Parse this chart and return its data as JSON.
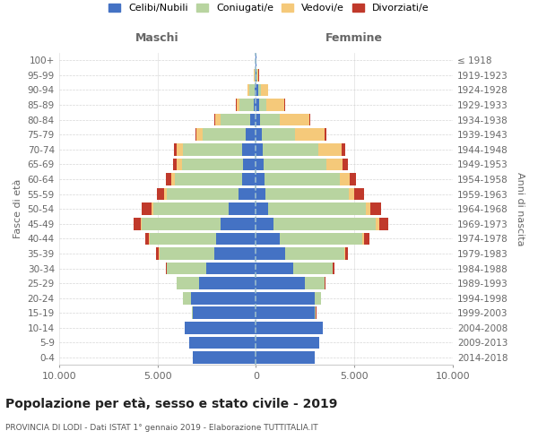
{
  "age_groups": [
    "0-4",
    "5-9",
    "10-14",
    "15-19",
    "20-24",
    "25-29",
    "30-34",
    "35-39",
    "40-44",
    "45-49",
    "50-54",
    "55-59",
    "60-64",
    "65-69",
    "70-74",
    "75-79",
    "80-84",
    "85-89",
    "90-94",
    "95-99",
    "100+"
  ],
  "birth_years": [
    "2014-2018",
    "2009-2013",
    "2004-2008",
    "1999-2003",
    "1994-1998",
    "1989-1993",
    "1984-1988",
    "1979-1983",
    "1974-1978",
    "1969-1973",
    "1964-1968",
    "1959-1963",
    "1954-1958",
    "1949-1953",
    "1944-1948",
    "1939-1943",
    "1934-1938",
    "1929-1933",
    "1924-1928",
    "1919-1923",
    "≤ 1918"
  ],
  "males": {
    "celibe": [
      3200,
      3400,
      3600,
      3200,
      3300,
      2900,
      2500,
      2100,
      2000,
      1800,
      1400,
      900,
      700,
      650,
      700,
      500,
      300,
      130,
      80,
      30,
      10
    ],
    "coniugato": [
      2,
      5,
      10,
      60,
      400,
      1100,
      2000,
      2800,
      3400,
      4000,
      3800,
      3600,
      3400,
      3100,
      3000,
      2200,
      1500,
      700,
      250,
      50,
      10
    ],
    "vedovo": [
      1,
      1,
      1,
      2,
      5,
      5,
      10,
      15,
      30,
      60,
      100,
      150,
      200,
      250,
      300,
      300,
      250,
      150,
      80,
      20,
      5
    ],
    "divorziato": [
      1,
      1,
      2,
      5,
      10,
      30,
      80,
      150,
      200,
      350,
      500,
      380,
      280,
      200,
      150,
      80,
      40,
      20,
      10,
      5,
      1
    ]
  },
  "females": {
    "nubile": [
      3000,
      3200,
      3400,
      3000,
      3000,
      2500,
      1900,
      1500,
      1200,
      900,
      600,
      500,
      450,
      400,
      350,
      280,
      200,
      150,
      100,
      30,
      10
    ],
    "coniugata": [
      2,
      3,
      10,
      50,
      300,
      1000,
      2000,
      3000,
      4200,
      5200,
      5000,
      4200,
      3800,
      3200,
      2800,
      1700,
      1000,
      400,
      150,
      30,
      5
    ],
    "vedova": [
      1,
      1,
      1,
      3,
      5,
      10,
      20,
      40,
      80,
      150,
      200,
      300,
      500,
      800,
      1200,
      1500,
      1500,
      900,
      350,
      80,
      10
    ],
    "divorziata": [
      1,
      1,
      2,
      5,
      10,
      30,
      80,
      150,
      280,
      450,
      550,
      480,
      350,
      250,
      180,
      100,
      60,
      30,
      15,
      5,
      1
    ]
  },
  "colors": {
    "celibe": "#4472C4",
    "coniugato": "#B8D4A0",
    "vedovo": "#F5C97A",
    "divorziato": "#C0392B"
  },
  "legend_labels": [
    "Celibi/Nubili",
    "Coniugati/e",
    "Vedovi/e",
    "Divorziati/e"
  ],
  "title": "Popolazione per età, sesso e stato civile - 2019",
  "subtitle": "PROVINCIA DI LODI - Dati ISTAT 1° gennaio 2019 - Elaborazione TUTTITALIA.IT",
  "xlabel_left": "Maschi",
  "xlabel_right": "Femmine",
  "ylabel_left": "Fasce di età",
  "ylabel_right": "Anni di nascita",
  "xlim": 10000,
  "background_color": "#ffffff",
  "grid_color": "#cccccc"
}
